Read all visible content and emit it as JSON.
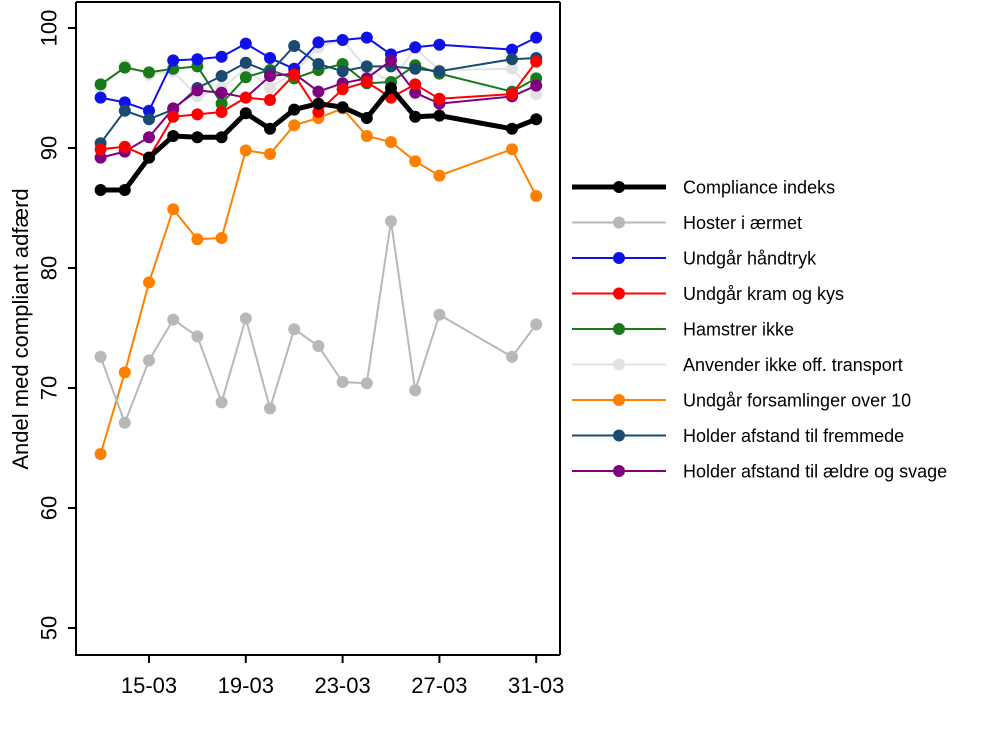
{
  "chart_data": {
    "type": "line",
    "title": "",
    "xlabel": "",
    "ylabel": "Andel med compliant adfærd",
    "ylim": [
      48,
      101
    ],
    "yticks": [
      50,
      60,
      70,
      80,
      90,
      100
    ],
    "xlim": [
      "2020-03-11",
      "2020-04-01"
    ],
    "xticks": [
      {
        "date": "2020-03-15",
        "label": "15-03"
      },
      {
        "date": "2020-03-19",
        "label": "19-03"
      },
      {
        "date": "2020-03-23",
        "label": "23-03"
      },
      {
        "date": "2020-03-27",
        "label": "27-03"
      },
      {
        "date": "2020-03-31",
        "label": "31-03"
      }
    ],
    "grid": false,
    "legend_position": "right",
    "x": [
      "2020-03-13",
      "2020-03-14",
      "2020-03-15",
      "2020-03-16",
      "2020-03-17",
      "2020-03-18",
      "2020-03-19",
      "2020-03-20",
      "2020-03-21",
      "2020-03-22",
      "2020-03-23",
      "2020-03-24",
      "2020-03-25",
      "2020-03-26",
      "2020-03-27",
      "2020-03-30",
      "2020-03-31"
    ],
    "series": [
      {
        "name": "Undgår forsamlinger over 10",
        "color": "#ff8000",
        "width": 2,
        "values": [
          64.5,
          71.3,
          78.8,
          84.9,
          82.4,
          82.5,
          89.8,
          89.5,
          91.9,
          92.5,
          93.3,
          91.0,
          90.5,
          88.9,
          87.7,
          89.9,
          86.0
        ]
      },
      {
        "name": "Hoster i ærmet",
        "color": "#b8b8b8",
        "width": 2,
        "values": [
          72.6,
          67.1,
          72.3,
          75.7,
          74.3,
          68.8,
          75.8,
          68.3,
          74.9,
          73.5,
          70.5,
          70.4,
          83.9,
          69.8,
          76.1,
          72.6,
          75.3
        ]
      },
      {
        "name": "Anvender ikke off. transport",
        "color": "#e2e2e2",
        "width": 2,
        "values": [
          95.0,
          96.9,
          96.1,
          96.4,
          94.3,
          95.0,
          96.6,
          95.0,
          96.3,
          98.4,
          99.0,
          96.6,
          95.5,
          98.3,
          96.5,
          96.6,
          94.5
        ]
      },
      {
        "name": "Hamstrer ikke",
        "color": "#1a7a1a",
        "width": 2,
        "values": [
          95.3,
          96.7,
          96.3,
          96.6,
          96.8,
          93.7,
          95.9,
          96.5,
          95.8,
          96.5,
          97.0,
          95.4,
          95.5,
          96.9,
          96.2,
          94.7,
          95.8
        ]
      },
      {
        "name": "Undgår håndtryk",
        "color": "#1010e8",
        "width": 2,
        "values": [
          94.2,
          93.8,
          93.1,
          97.3,
          97.4,
          97.6,
          98.7,
          97.5,
          96.6,
          98.8,
          99.0,
          99.2,
          97.8,
          98.4,
          98.6,
          98.2,
          99.2
        ]
      },
      {
        "name": "Holder afstand til fremmede",
        "color": "#1a4a70",
        "width": 2,
        "values": [
          90.4,
          93.1,
          92.4,
          93.2,
          95.0,
          96.0,
          97.1,
          96.3,
          98.5,
          97.0,
          96.4,
          96.8,
          96.8,
          96.6,
          96.4,
          97.4,
          97.5
        ]
      },
      {
        "name": "Holder afstand til ældre og svage",
        "color": "#800080",
        "width": 2,
        "values": [
          89.2,
          89.7,
          90.9,
          93.3,
          94.8,
          94.6,
          94.2,
          96.0,
          96.2,
          94.7,
          95.4,
          95.8,
          97.3,
          94.6,
          93.7,
          94.3,
          95.2
        ]
      },
      {
        "name": "Undgår kram og kys",
        "color": "#ff0000",
        "width": 2,
        "values": [
          89.9,
          90.1,
          89.2,
          92.6,
          92.8,
          93.0,
          94.2,
          94.0,
          96.1,
          93.0,
          94.9,
          95.5,
          94.2,
          95.3,
          94.1,
          94.5,
          97.2
        ]
      },
      {
        "name": "Compliance indeks",
        "color": "#000000",
        "width": 5,
        "values": [
          86.5,
          86.5,
          89.2,
          91.0,
          90.9,
          90.9,
          92.9,
          91.6,
          93.2,
          93.7,
          93.4,
          92.5,
          95.0,
          92.6,
          92.7,
          91.6,
          92.4
        ]
      }
    ],
    "legend_order": [
      "Compliance indeks",
      "Hoster i ærmet",
      "Undgår håndtryk",
      "Undgår kram og kys",
      "Hamstrer ikke",
      "Anvender ikke off. transport",
      "Undgår forsamlinger over 10",
      "Holder afstand til fremmede",
      "Holder afstand til ældre og svage"
    ]
  }
}
